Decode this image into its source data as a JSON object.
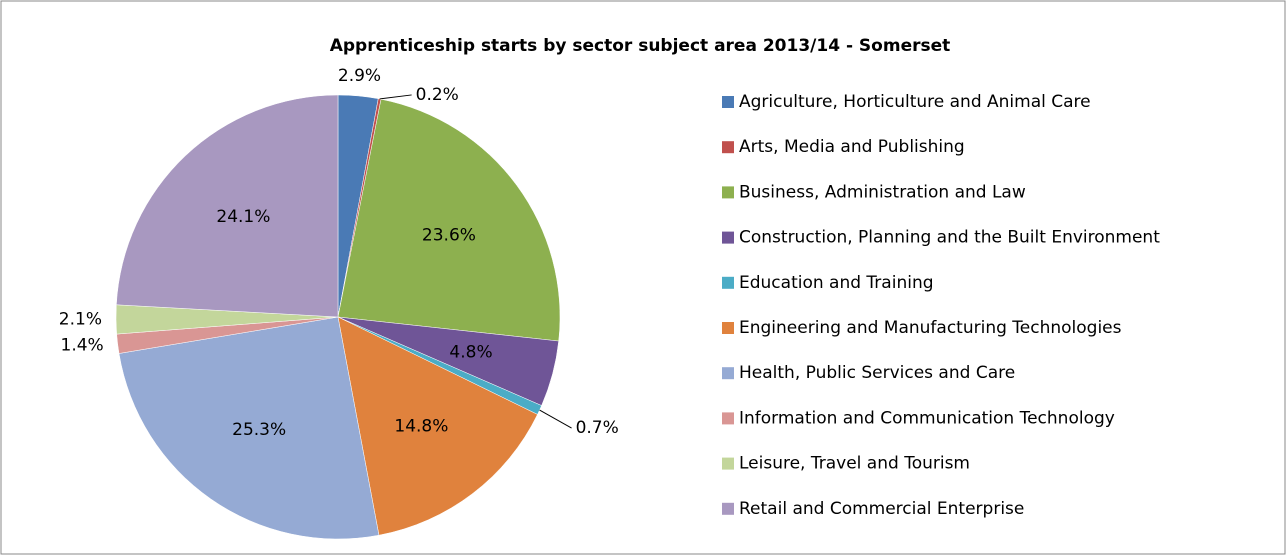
{
  "chart_data": {
    "type": "pie",
    "title": "Apprenticeship starts by sector subject area 2013/14 - Somerset",
    "categories": [
      "Agriculture, Horticulture and Animal Care",
      "Arts, Media and Publishing",
      "Business, Administration and Law",
      "Construction, Planning and the Built Environment",
      "Education and Training",
      "Engineering and Manufacturing Technologies",
      "Health, Public Services and Care",
      "Information and Communication Technology",
      "Leisure, Travel and Tourism",
      "Retail and Commercial Enterprise"
    ],
    "values": [
      2.9,
      0.2,
      23.6,
      4.8,
      0.7,
      14.8,
      25.3,
      1.4,
      2.1,
      24.1
    ],
    "value_labels": [
      "2.9%",
      "0.2%",
      "23.6%",
      "4.8%",
      "0.7%",
      "14.8%",
      "25.3%",
      "1.4%",
      "2.1%",
      "24.1%"
    ],
    "colors": [
      "#4a7ab5",
      "#c0504d",
      "#8db04f",
      "#6f5597",
      "#4bacc6",
      "#e0823d",
      "#95aad4",
      "#d99694",
      "#c3d69b",
      "#a898c0"
    ],
    "legend": "right"
  }
}
